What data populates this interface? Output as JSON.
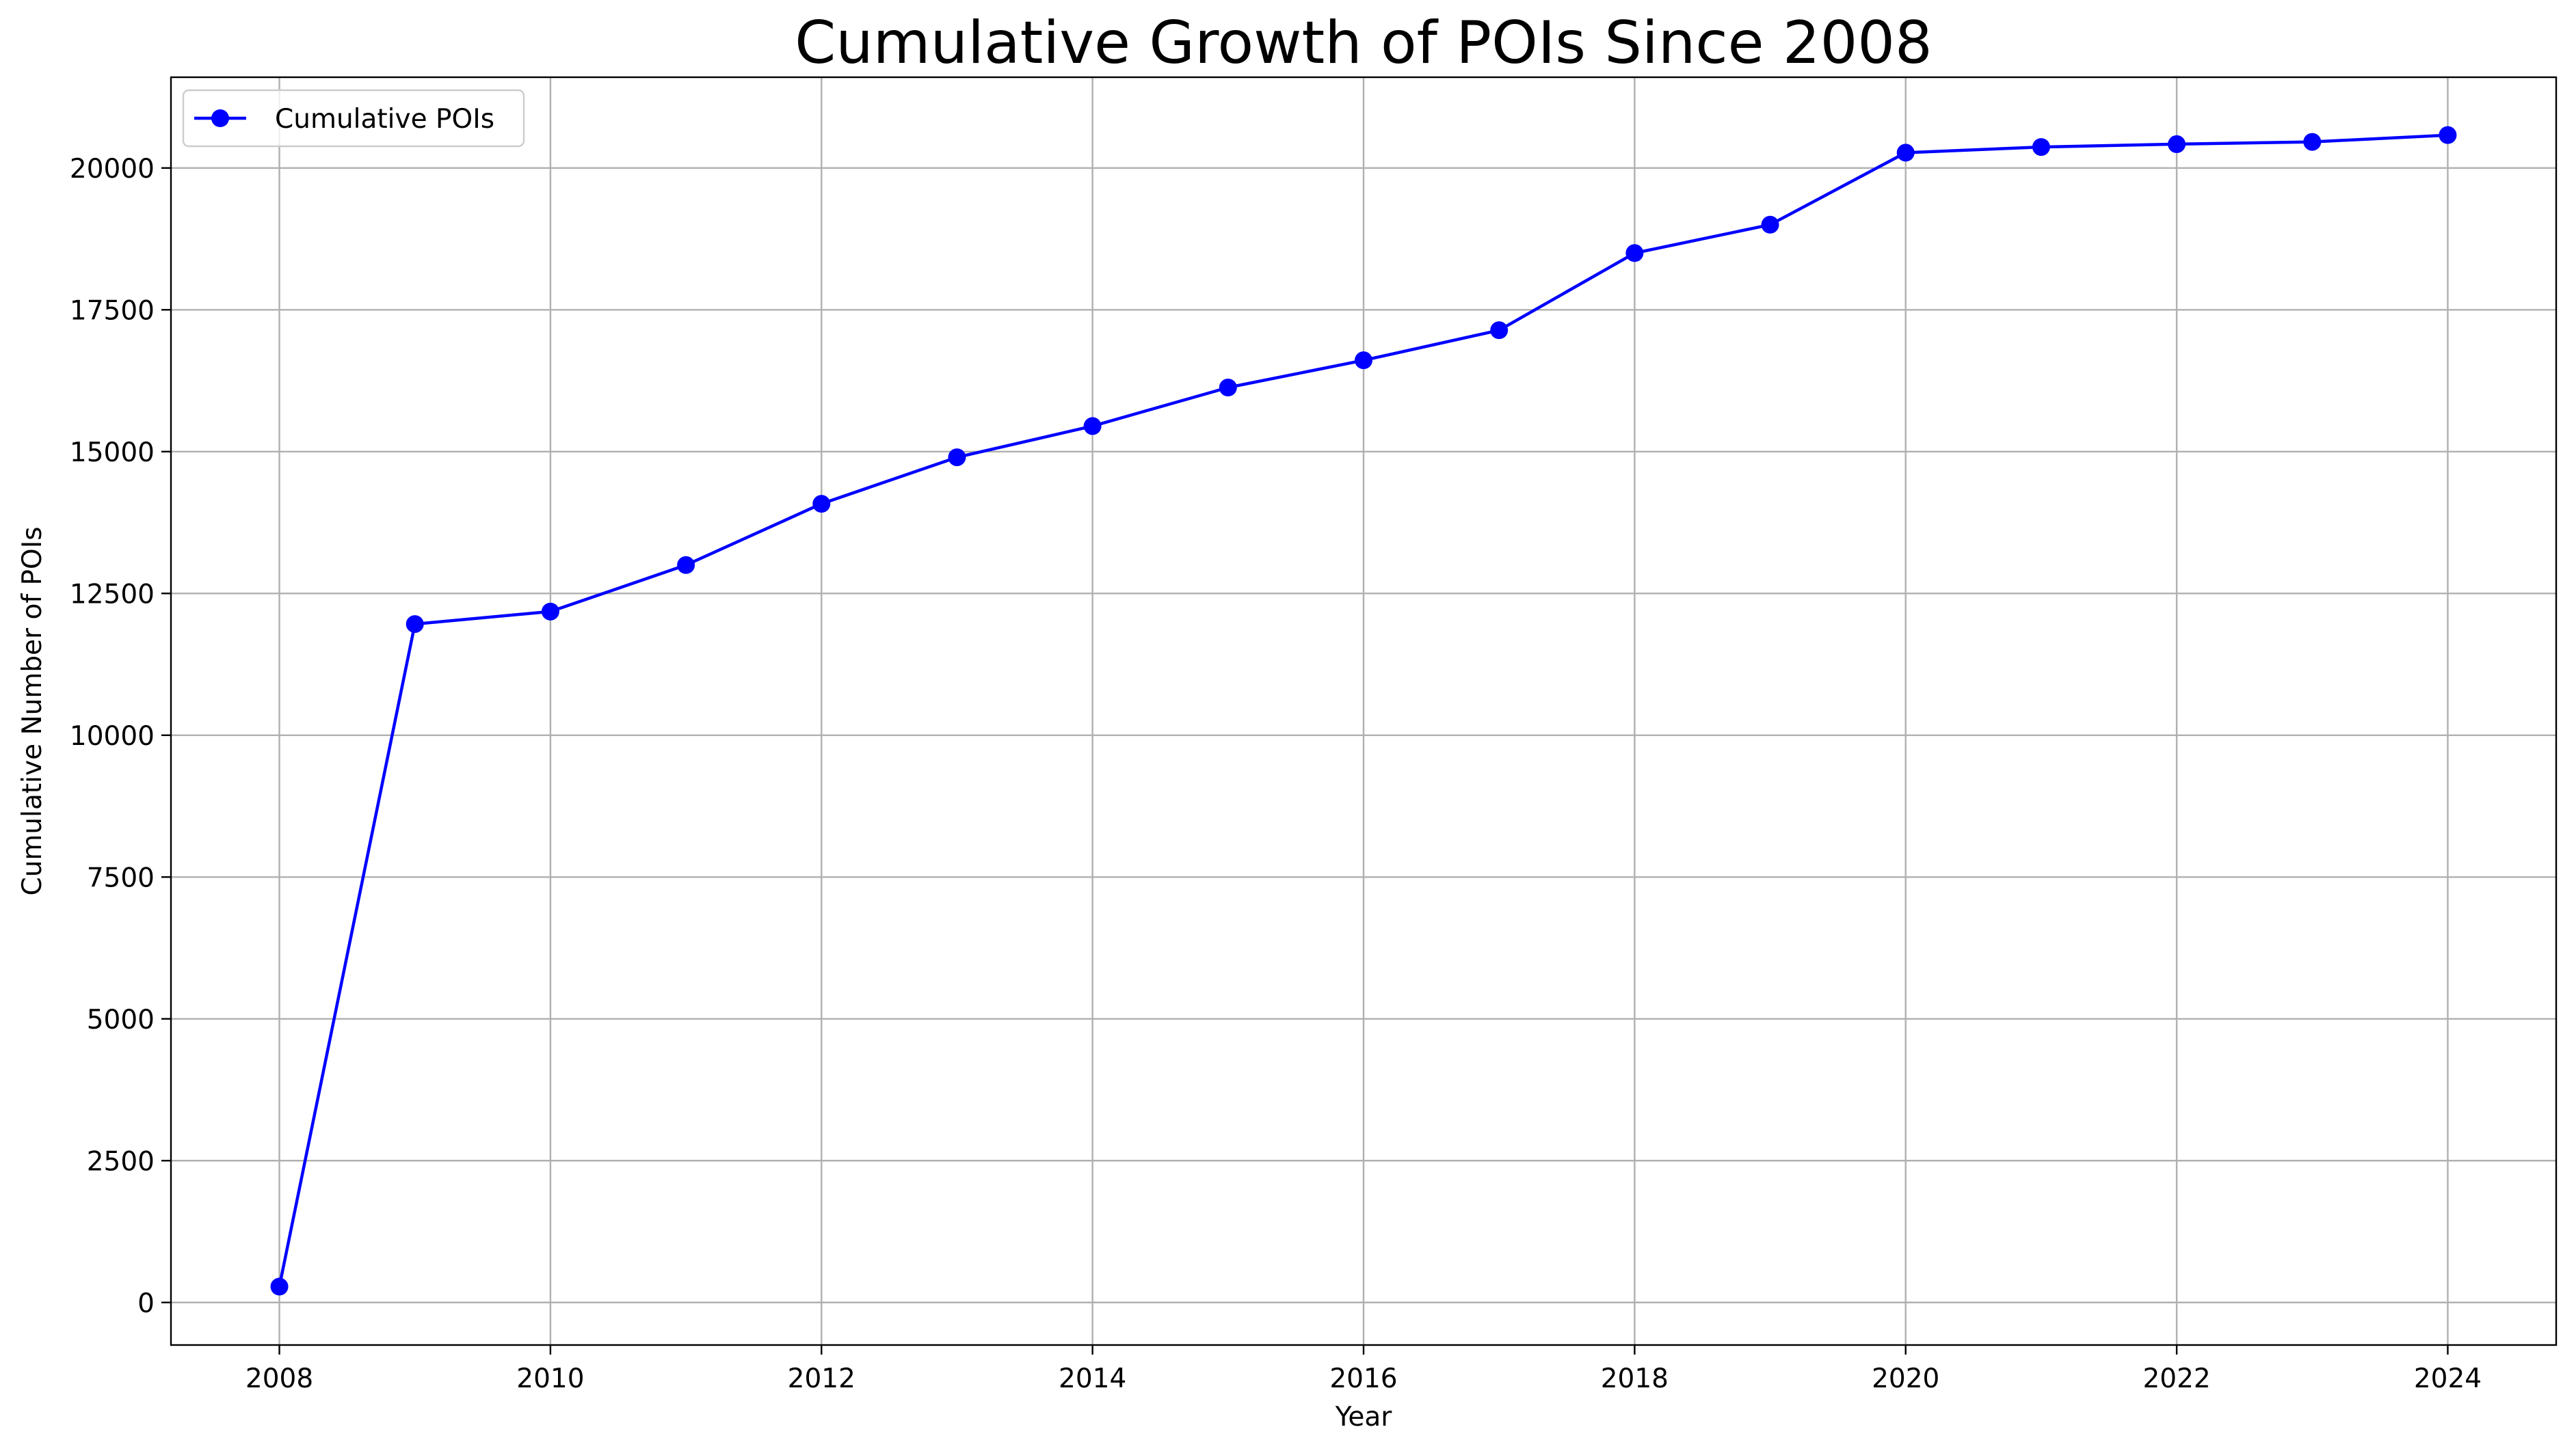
{
  "chart_data": {
    "type": "line",
    "title": "Cumulative Growth of POIs Since 2008",
    "xlabel": "Year",
    "ylabel": "Cumulative Number of POIs",
    "xlim": [
      2007.2,
      2024.8
    ],
    "ylim": [
      -750,
      21600
    ],
    "x_ticks": [
      2008,
      2010,
      2012,
      2014,
      2016,
      2018,
      2020,
      2022,
      2024
    ],
    "y_ticks": [
      0,
      2500,
      5000,
      7500,
      10000,
      12500,
      15000,
      17500,
      20000
    ],
    "grid": true,
    "legend": {
      "position": "top-left"
    },
    "series": [
      {
        "name": "Cumulative POIs",
        "color": "#0000ff",
        "marker": "circle",
        "x": [
          2008,
          2009,
          2010,
          2011,
          2012,
          2013,
          2014,
          2015,
          2016,
          2017,
          2018,
          2019,
          2020,
          2021,
          2022,
          2023,
          2024
        ],
        "y": [
          280,
          11960,
          12180,
          13000,
          14080,
          14900,
          15450,
          16130,
          16610,
          17140,
          18500,
          19000,
          20270,
          20370,
          20420,
          20460,
          20580
        ]
      }
    ]
  }
}
